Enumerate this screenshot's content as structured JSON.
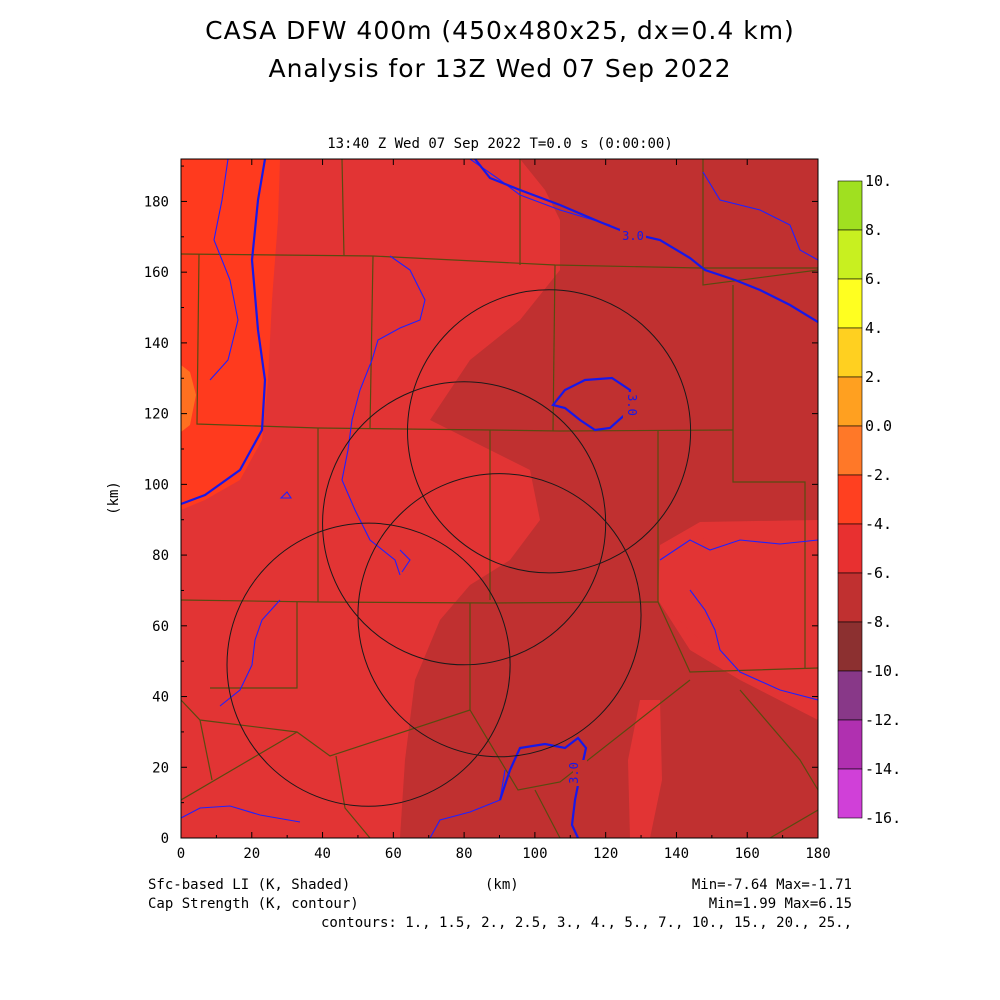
{
  "header": {
    "title_line1": "CASA DFW 400m (450x480x25, dx=0.4 km)",
    "title_line2": "Analysis for 13Z Wed 07 Sep 2022",
    "valid_time": "13:40 Z Wed 07 Sep 2022    T=0.0 s (0:00:00)"
  },
  "axes": {
    "x_label": "(km)",
    "y_label": "(km)",
    "x_ticks": [
      "0",
      "20",
      "40",
      "60",
      "80",
      "100",
      "120",
      "140",
      "160",
      "180"
    ],
    "y_ticks": [
      "0",
      "20",
      "40",
      "60",
      "80",
      "100",
      "120",
      "140",
      "160",
      "180"
    ],
    "x_range": [
      0,
      180
    ],
    "y_range": [
      0,
      192
    ]
  },
  "colorbar": {
    "labels": [
      "10.",
      "8.",
      "6.",
      "4.",
      "2.",
      "0.0",
      "-2.",
      "-4.",
      "-6.",
      "-8.",
      "-10.",
      "-12.",
      "-14.",
      "-16."
    ],
    "colors": [
      "#a0e020",
      "#c8f020",
      "#ffff20",
      "#ffd020",
      "#ffa020",
      "#ff7828",
      "#ff4020",
      "#e83030",
      "#c03030",
      "#8c3030",
      "#883888",
      "#b030b0",
      "#d040d8"
    ]
  },
  "footer": {
    "shaded_field": "Sfc-based LI (K, Shaded)",
    "contour_field": "Cap Strength (K, contour)",
    "x_unit": "(km)",
    "shaded_minmax": "Min=-7.64 Max=-1.71",
    "contour_minmax": "Min=1.99 Max=6.15",
    "contour_levels": "contours: 1., 1.5, 2., 2.5, 3., 4., 5., 7., 10., 15., 20., 25.,"
  },
  "map": {
    "contour_label": "3.0",
    "radar_rings": [
      {
        "center_km": [
          104,
          115
        ],
        "radius_km": 40
      },
      {
        "center_km": [
          80,
          89
        ],
        "radius_km": 40
      },
      {
        "center_km": [
          90,
          63
        ],
        "radius_km": 40
      },
      {
        "center_km": [
          53,
          49
        ],
        "radius_km": 40
      }
    ]
  }
}
